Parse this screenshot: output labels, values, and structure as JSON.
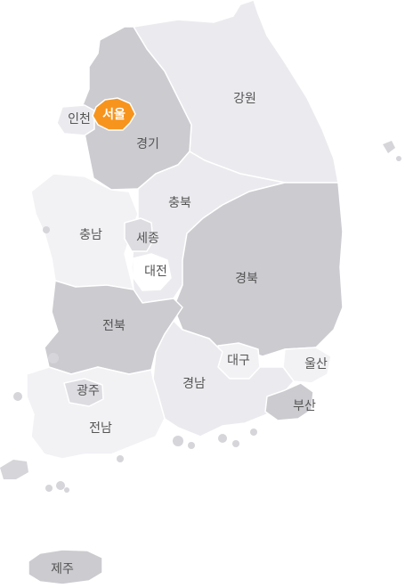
{
  "map": {
    "regions": [
      {
        "id": "seoul",
        "label": "서울",
        "selected": true
      },
      {
        "id": "incheon",
        "label": "인천"
      },
      {
        "id": "gyeonggi",
        "label": "경기"
      },
      {
        "id": "gangwon",
        "label": "강원"
      },
      {
        "id": "chungbuk",
        "label": "충북"
      },
      {
        "id": "chungnam",
        "label": "충남"
      },
      {
        "id": "sejong",
        "label": "세종"
      },
      {
        "id": "daejeon",
        "label": "대전"
      },
      {
        "id": "gyeongbuk",
        "label": "경북"
      },
      {
        "id": "jeonbuk",
        "label": "전북"
      },
      {
        "id": "daegu",
        "label": "대구"
      },
      {
        "id": "ulsan",
        "label": "울산"
      },
      {
        "id": "gwangju",
        "label": "광주"
      },
      {
        "id": "gyeongnam",
        "label": "경남"
      },
      {
        "id": "busan",
        "label": "부산"
      },
      {
        "id": "jeonnam",
        "label": "전남"
      },
      {
        "id": "jeju",
        "label": "제주"
      }
    ],
    "colors": {
      "selected": "#f7941d",
      "dark": "#cbcbd0",
      "medium": "#dcdce1",
      "light": "#ebebef",
      "lightest": "#f2f2f5"
    }
  }
}
